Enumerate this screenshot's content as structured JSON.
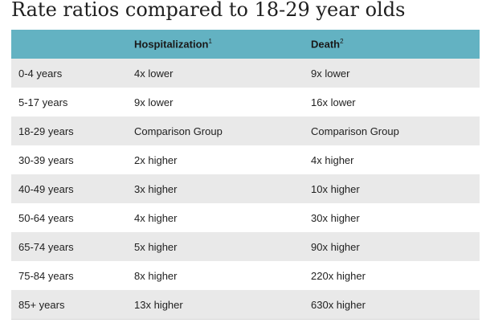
{
  "title": "Rate ratios compared to 18-29 year olds",
  "table": {
    "headers": [
      "",
      "Hospitalization",
      "Death"
    ],
    "footnotes": [
      "",
      "1",
      "2"
    ],
    "rows": [
      [
        "0-4 years",
        "4x lower",
        "9x lower"
      ],
      [
        "5-17 years",
        "9x lower",
        "16x lower"
      ],
      [
        "18-29 years",
        "Comparison Group",
        "Comparison Group"
      ],
      [
        "30-39 years",
        "2x higher",
        "4x higher"
      ],
      [
        "40-49 years",
        "3x higher",
        "10x higher"
      ],
      [
        "50-64 years",
        "4x higher",
        "30x higher"
      ],
      [
        "65-74 years",
        "5x higher",
        "90x higher"
      ],
      [
        "75-84 years",
        "8x higher",
        "220x higher"
      ],
      [
        "85+ years",
        "13x higher",
        "630x higher"
      ]
    ]
  },
  "colors": {
    "header_bg": "#63b2c2",
    "stripe_bg": "#e9e9e9"
  }
}
